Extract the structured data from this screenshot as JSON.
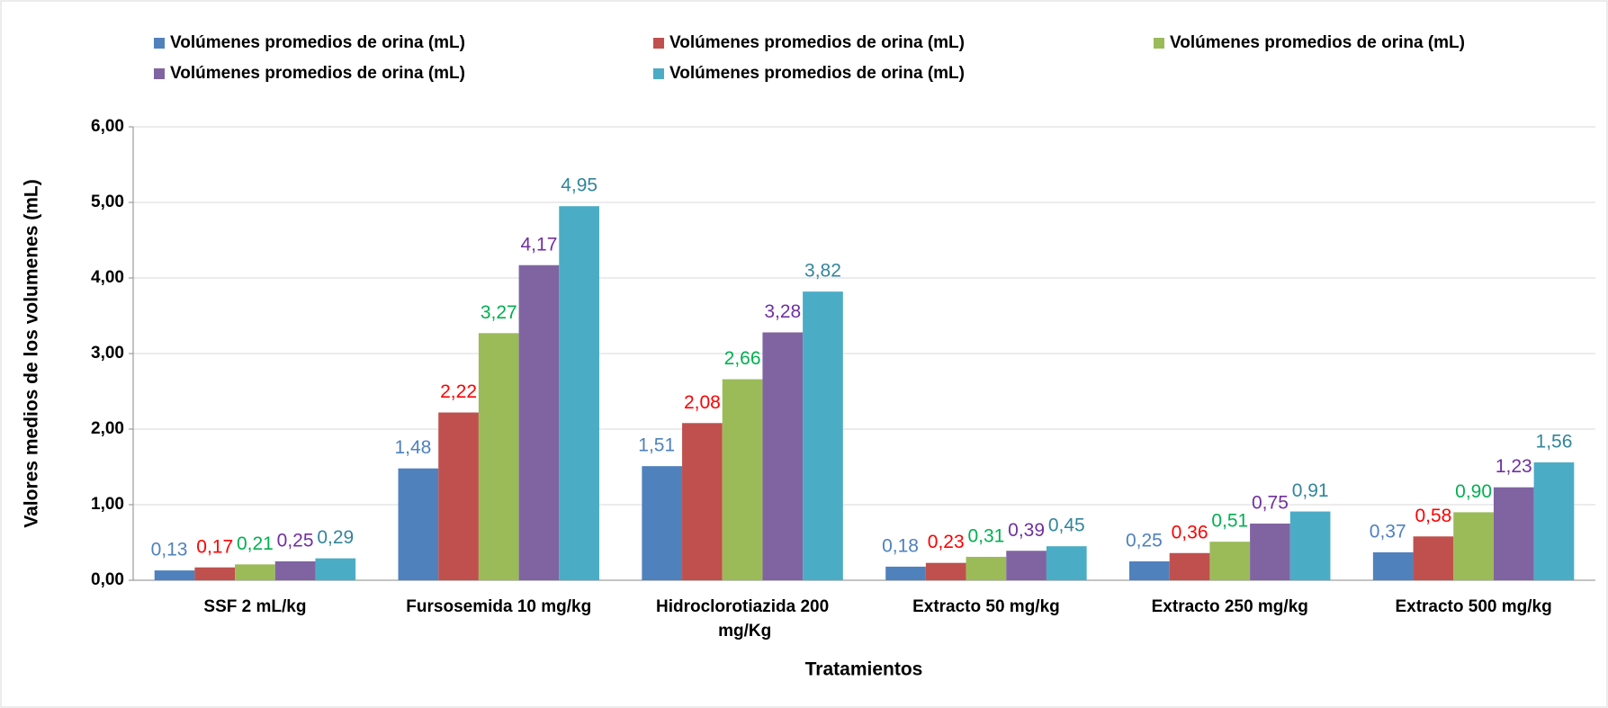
{
  "chart_data": {
    "type": "bar",
    "x_label": "Tratamientos",
    "y_label": "Valores medios de los volumenes (mL)",
    "categories": [
      "SSF 2 mL/kg",
      "Fursosemida 10 mg/kg",
      "Hidroclorotiazida 200 mg/Kg",
      "Extracto 50 mg/kg",
      "Extracto 250 mg/kg",
      "Extracto 500 mg/kg"
    ],
    "series": [
      {
        "name": "Volúmenes promedios de orina (mL)",
        "color": "#4f81bd",
        "label_color": "#4f81bd",
        "values": [
          0.13,
          1.48,
          1.51,
          0.18,
          0.25,
          0.37
        ],
        "value_labels": [
          "0,13",
          "1,48",
          "1,51",
          "0,18",
          "0,25",
          "0,37"
        ]
      },
      {
        "name": "Volúmenes promedios de orina (mL)",
        "color": "#c0504d",
        "label_color": "#ff0000",
        "values": [
          0.17,
          2.22,
          2.08,
          0.23,
          0.36,
          0.58
        ],
        "value_labels": [
          "0,17",
          "2,22",
          "2,08",
          "0,23",
          "0,36",
          "0,58"
        ]
      },
      {
        "name": "Volúmenes promedios de orina (mL)",
        "color": "#9bbb59",
        "label_color": "#00b050",
        "values": [
          0.21,
          3.27,
          2.66,
          0.31,
          0.51,
          0.9
        ],
        "value_labels": [
          "0,21",
          "3,27",
          "2,66",
          "0,31",
          "0,51",
          "0,90"
        ]
      },
      {
        "name": "Volúmenes promedios de orina (mL)",
        "color": "#8064a2",
        "label_color": "#7030a0",
        "values": [
          0.25,
          4.17,
          3.28,
          0.39,
          0.75,
          1.23
        ],
        "value_labels": [
          "0,25",
          "4,17",
          "3,28",
          "0,39",
          "0,75",
          "1,23"
        ]
      },
      {
        "name": "Volúmenes promedios de orina (mL)",
        "color": "#4bacc6",
        "label_color": "#31859c",
        "values": [
          0.29,
          4.95,
          3.82,
          0.45,
          0.91,
          1.56
        ],
        "value_labels": [
          "0,29",
          "4,95",
          "3,82",
          "0,45",
          "0,91",
          "1,56"
        ]
      }
    ],
    "ylim": [
      0,
      6
    ],
    "yticks": [
      {
        "value": 0,
        "label": "0,00"
      },
      {
        "value": 1,
        "label": "1,00"
      },
      {
        "value": 2,
        "label": "2,00"
      },
      {
        "value": 3,
        "label": "3,00"
      },
      {
        "value": 4,
        "label": "4,00"
      },
      {
        "value": 5,
        "label": "5,00"
      },
      {
        "value": 6,
        "label": "6,00"
      }
    ],
    "grid": true,
    "legend": "top"
  }
}
